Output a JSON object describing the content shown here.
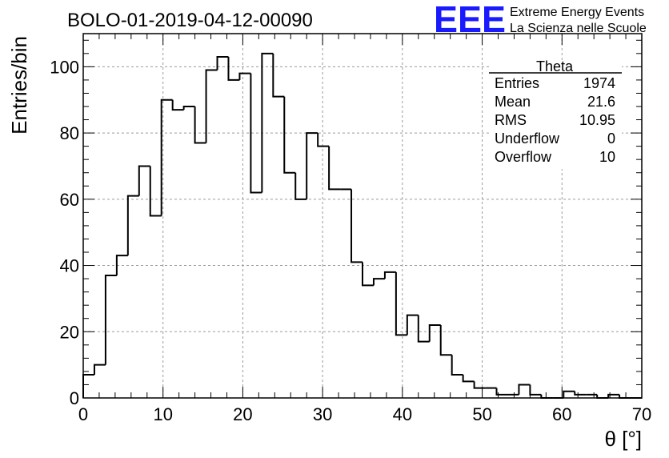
{
  "chart_data": {
    "type": "bar",
    "histogram": true,
    "title": "BOLO-01-2019-04-12-00090",
    "xlabel": "θ [°]",
    "ylabel": "Entries/bin",
    "xlim": [
      0,
      70
    ],
    "ylim": [
      0,
      110
    ],
    "bin_width": 1.4,
    "grid": true,
    "x_ticks": [
      0,
      10,
      20,
      30,
      40,
      50,
      60,
      70
    ],
    "y_ticks": [
      0,
      20,
      40,
      60,
      80,
      100
    ],
    "values": [
      7,
      10,
      37,
      43,
      61,
      70,
      55,
      90,
      87,
      88,
      77,
      99,
      103,
      96,
      98,
      62,
      104,
      91,
      68,
      60,
      80,
      76,
      63,
      63,
      41,
      34,
      36,
      38,
      19,
      25,
      17,
      22,
      13,
      7,
      5,
      3,
      3,
      1,
      1,
      4,
      1,
      0,
      0,
      2,
      1,
      1,
      0,
      1,
      0,
      0
    ],
    "line_color": "#000000"
  },
  "stats_box": {
    "name": "Theta",
    "rows": [
      {
        "label": "Entries",
        "value": "1974"
      },
      {
        "label": "Mean",
        "value": "21.6"
      },
      {
        "label": "RMS",
        "value": "10.95"
      },
      {
        "label": "Underflow",
        "value": "0"
      },
      {
        "label": "Overflow",
        "value": "10"
      }
    ]
  },
  "logo": {
    "mark": "EEE",
    "line1": "Extreme Energy Events",
    "line2": "La Scienza nelle Scuole",
    "color": "#1a1aff"
  }
}
